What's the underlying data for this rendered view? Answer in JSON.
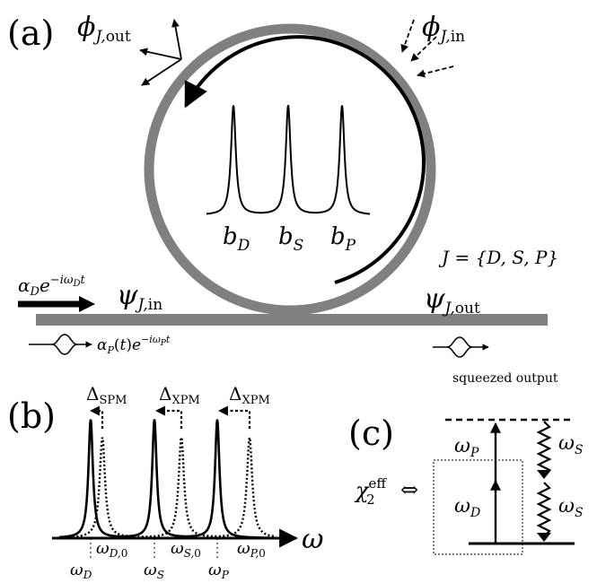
{
  "panel_a": {
    "label": "(a)",
    "phi_out": "ϕJ,out",
    "phi_in": "ϕJ,in",
    "mode_labels": {
      "b_D": "bD",
      "b_S": "bS",
      "b_P": "bP"
    },
    "mode_set": "J = {D, S, P}",
    "psi_in": "ψJ,in",
    "psi_out": "ψJ,out",
    "drive": "αDe−iωDt",
    "probe": "αP(t)e−iωPt",
    "squeezed_output": "squeezed output"
  },
  "panel_b": {
    "label": "(b)",
    "shift_labels": [
      "ΔSPM",
      "ΔXPM",
      "ΔXPM"
    ],
    "axis_symbol": "ω",
    "shifted_freqs": [
      "ωD",
      "ωS",
      "ωP"
    ],
    "bare_freqs": [
      "ωD,0",
      "ωS,0",
      "ωP,0"
    ]
  },
  "panel_c": {
    "label": "(c)",
    "chi": "χ2eff",
    "equiv": "⇔",
    "omega_P": "ωP",
    "omega_D": "ωD",
    "omega_S_top": "ωS",
    "omega_S_bottom": "ωS"
  },
  "colors": {
    "ink": "#000000",
    "ring": "#808080"
  }
}
